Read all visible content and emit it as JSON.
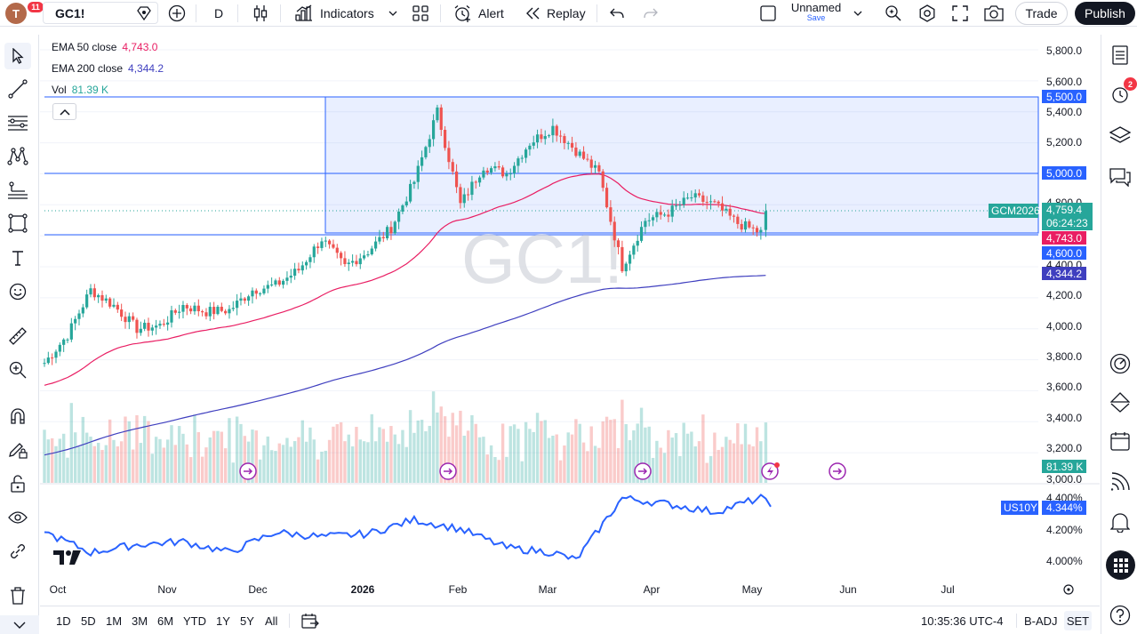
{
  "toolbar": {
    "avatar_letter": "T",
    "notifications_count": "11",
    "symbol": "GC1!",
    "interval": "D",
    "indicators_label": "Indicators",
    "alert_label": "Alert",
    "replay_label": "Replay",
    "layout_name": "Unnamed",
    "layout_save": "Save",
    "trade_label": "Trade",
    "publish_label": "Publish"
  },
  "legend": {
    "ema50": {
      "name": "EMA 50 close",
      "value": "4,743.0",
      "color": "#e91e63"
    },
    "ema200": {
      "name": "EMA 200 close",
      "value": "4,344.2",
      "color": "#3f3fbf"
    },
    "vol": {
      "name": "Vol",
      "value": "81.39 K",
      "color": "#26a69a"
    }
  },
  "watermark": "GC1!",
  "price_axis": {
    "ticks": [
      "5,800.0",
      "5,600.0",
      "5,400.0",
      "5,200.0",
      "4,800.0",
      "4,400.0",
      "4,200.0",
      "4,000.0",
      "3,800.0",
      "3,600.0",
      "3,400.0",
      "3,200.0",
      "3,000.0"
    ],
    "labels": {
      "level_5500": "5,500.0",
      "level_5000": "5,000.0",
      "last_price": "4,759.4",
      "countdown": "06:24:23",
      "contract": "GCM2026",
      "ema50": "4,743.0",
      "level_4600": "4,600.0",
      "ema200": "4,344.2",
      "volume": "81.39 K"
    }
  },
  "us10y": {
    "symbol": "US10Y",
    "value": "4.344%",
    "ticks": [
      "4.400%",
      "4.200%",
      "4.000%"
    ]
  },
  "time_axis": [
    "Oct",
    "Nov",
    "Dec",
    "2026",
    "Feb",
    "Mar",
    "Apr",
    "May",
    "Jun",
    "Jul"
  ],
  "bottom": {
    "ranges": [
      "1D",
      "5D",
      "1M",
      "3M",
      "6M",
      "YTD",
      "1Y",
      "5Y",
      "All"
    ],
    "clock": "10:35:36 UTC-4",
    "badj": "B-ADJ",
    "set": "SET"
  },
  "colors": {
    "up": "#26a69a",
    "down": "#ef5350",
    "accent": "#2962ff",
    "rect": "#2962ff"
  },
  "chart_data": {
    "type": "candlestick",
    "symbol": "GC1!",
    "interval": "D",
    "ylim": [
      3000,
      5800
    ],
    "levels": [
      5500,
      5000,
      4600
    ],
    "ema50_last": 4743.0,
    "ema200_last": 4344.2,
    "last_price": 4759.4,
    "close_path": [
      [
        "2025-09-29",
        3780
      ],
      [
        "2025-10-06",
        3960
      ],
      [
        "2025-10-13",
        4250
      ],
      [
        "2025-10-20",
        4150
      ],
      [
        "2025-10-27",
        4000
      ],
      [
        "2025-11-03",
        4020
      ],
      [
        "2025-11-10",
        4150
      ],
      [
        "2025-11-17",
        4110
      ],
      [
        "2025-11-24",
        4120
      ],
      [
        "2025-12-01",
        4250
      ],
      [
        "2025-12-08",
        4280
      ],
      [
        "2025-12-15",
        4380
      ],
      [
        "2025-12-22",
        4580
      ],
      [
        "2025-12-29",
        4400
      ],
      [
        "2026-01-05",
        4500
      ],
      [
        "2026-01-12",
        4650
      ],
      [
        "2026-01-19",
        4950
      ],
      [
        "2026-01-26",
        5400
      ],
      [
        "2026-02-02",
        4800
      ],
      [
        "2026-02-09",
        5050
      ],
      [
        "2026-02-16",
        5000
      ],
      [
        "2026-02-23",
        5200
      ],
      [
        "2026-03-02",
        5300
      ],
      [
        "2026-03-09",
        5150
      ],
      [
        "2026-03-16",
        5000
      ],
      [
        "2026-03-23",
        4400
      ],
      [
        "2026-03-30",
        4700
      ],
      [
        "2026-04-06",
        4750
      ],
      [
        "2026-04-13",
        4850
      ],
      [
        "2026-04-20",
        4800
      ],
      [
        "2026-04-27",
        4680
      ],
      [
        "2026-05-04",
        4620
      ],
      [
        "2026-05-07",
        4759
      ]
    ],
    "us10y_path": [
      [
        "2025-09-29",
        4.18
      ],
      [
        "2025-10-13",
        4.05
      ],
      [
        "2025-10-27",
        4.1
      ],
      [
        "2025-11-10",
        4.12
      ],
      [
        "2025-11-24",
        4.05
      ],
      [
        "2025-12-08",
        4.18
      ],
      [
        "2025-12-22",
        4.15
      ],
      [
        "2026-01-05",
        4.17
      ],
      [
        "2026-01-19",
        4.26
      ],
      [
        "2026-02-02",
        4.2
      ],
      [
        "2026-02-16",
        4.08
      ],
      [
        "2026-03-02",
        4.05
      ],
      [
        "2026-03-09",
        4.0
      ],
      [
        "2026-03-16",
        4.2
      ],
      [
        "2026-03-23",
        4.4
      ],
      [
        "2026-04-06",
        4.36
      ],
      [
        "2026-04-20",
        4.31
      ],
      [
        "2026-05-04",
        4.4
      ],
      [
        "2026-05-07",
        4.344
      ]
    ]
  }
}
